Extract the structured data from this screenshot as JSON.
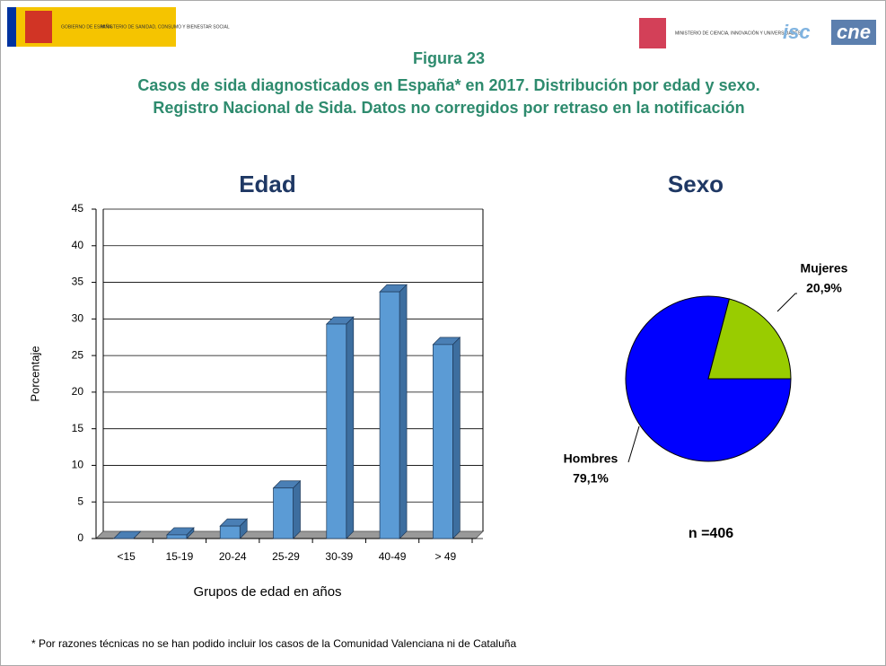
{
  "header": {
    "logo_left_1": "GOBIERNO DE ESPAÑA",
    "logo_left_2": "MINISTERIO DE SANIDAD, CONSUMO Y BIENESTAR SOCIAL",
    "logo_right_1": "MINISTERIO DE CIENCIA, INNOVACIÓN Y UNIVERSIDADES",
    "logo_isc": "isc",
    "logo_cne": "cne"
  },
  "figure": "Figura 23",
  "title_lines": [
    "Casos de sida diagnosticados en España* en 2017. Distribución por edad y sexo.",
    "Registro Nacional de Sida. Datos no corregidos por retraso en la notificación"
  ],
  "footnote": "* Por razones técnicas no se han podido incluir los casos de la Comunidad Valenciana ni de Cataluña",
  "chart_data": [
    {
      "type": "bar",
      "title": "Edad",
      "xlabel": "Grupos de edad en años",
      "ylabel": "Porcentaje",
      "categories": [
        "<15",
        "15-19",
        "20-24",
        "25-29",
        "30-39",
        "40-49",
        "> 49"
      ],
      "values": [
        0,
        0.5,
        1.7,
        6.9,
        29.3,
        33.7,
        26.5
      ],
      "color": "#5b9bd5",
      "ylim": [
        0,
        45
      ],
      "yticks": [
        0,
        5,
        10,
        15,
        20,
        25,
        30,
        35,
        40,
        45
      ],
      "grid": true
    },
    {
      "type": "pie",
      "title": "Sexo",
      "categories": [
        "Hombres",
        "Mujeres"
      ],
      "values": [
        79.1,
        20.9
      ],
      "value_labels": [
        "79,1%",
        "20,9%"
      ],
      "colors": [
        "#0000ff",
        "#99cc00"
      ],
      "annotation": "n =406"
    }
  ]
}
